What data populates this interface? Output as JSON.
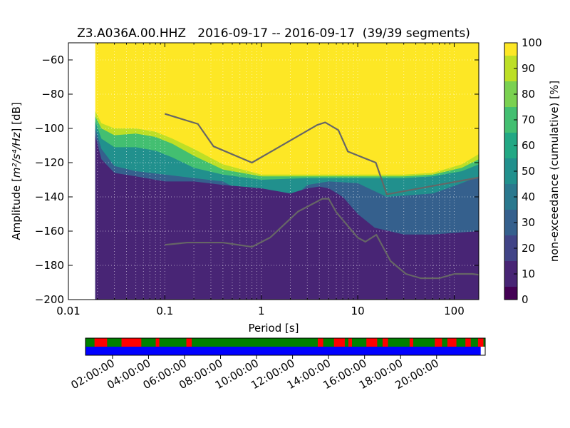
{
  "title": "Z3.A036A.00.HHZ   2016-09-17 -- 2016-09-17  (39/39 segments)",
  "chart_data": {
    "type": "heatmap",
    "title": "Z3.A036A.00.HHZ   2016-09-17 -- 2016-09-17  (39/39 segments)",
    "xlabel": "Period [s]",
    "ylabel_prefix": "Amplitude [",
    "ylabel_units": "m²/s⁴/Hz",
    "ylabel_suffix": "] [dB]",
    "x_scale": "log",
    "xlim": [
      0.01,
      180
    ],
    "ylim": [
      -200,
      -50
    ],
    "grid": true,
    "x_ticks": [
      {
        "value": 0.01,
        "label": "0.01"
      },
      {
        "value": 0.1,
        "label": "0.1"
      },
      {
        "value": 1,
        "label": "1"
      },
      {
        "value": 10,
        "label": "10"
      },
      {
        "value": 100,
        "label": "100"
      }
    ],
    "y_ticks": [
      {
        "value": -60,
        "label": "−60"
      },
      {
        "value": -80,
        "label": "−80"
      },
      {
        "value": -100,
        "label": "−100"
      },
      {
        "value": -120,
        "label": "−120"
      },
      {
        "value": -140,
        "label": "−140"
      },
      {
        "value": -160,
        "label": "−160"
      },
      {
        "value": -180,
        "label": "−180"
      },
      {
        "value": -200,
        "label": "−200"
      }
    ],
    "data_start_period": 0.019,
    "colorbar": {
      "label": "non-exceedance (cumulative) [%]",
      "range": [
        0,
        100
      ],
      "ticks": [
        {
          "value": 0,
          "label": "0"
        },
        {
          "value": 10,
          "label": "10"
        },
        {
          "value": 20,
          "label": "20"
        },
        {
          "value": 30,
          "label": "30"
        },
        {
          "value": 40,
          "label": "40"
        },
        {
          "value": 50,
          "label": "50"
        },
        {
          "value": 60,
          "label": "60"
        },
        {
          "value": 70,
          "label": "70"
        },
        {
          "value": 80,
          "label": "80"
        },
        {
          "value": 90,
          "label": "90"
        },
        {
          "value": 100,
          "label": "100"
        }
      ],
      "colors": [
        "#440154",
        "#482575",
        "#414487",
        "#35608d",
        "#2a788e",
        "#21908d",
        "#22a884",
        "#43bf71",
        "#7ad151",
        "#bddf26",
        "#fde725"
      ]
    },
    "level_curves": [
      {
        "percent": 8,
        "points": [
          [
            0.019,
            -104
          ],
          [
            0.022,
            -118
          ],
          [
            0.03,
            -126
          ],
          [
            0.05,
            -128
          ],
          [
            0.1,
            -131
          ],
          [
            0.2,
            -131
          ],
          [
            0.4,
            -133
          ],
          [
            1,
            -135
          ],
          [
            2,
            -138
          ],
          [
            3,
            -135
          ],
          [
            4,
            -134
          ],
          [
            5,
            -135
          ],
          [
            7,
            -140
          ],
          [
            10,
            -150
          ],
          [
            15,
            -158
          ],
          [
            30,
            -162
          ],
          [
            60,
            -162
          ],
          [
            180,
            -160
          ]
        ]
      },
      {
        "percent": 25,
        "points": [
          [
            0.019,
            -100
          ],
          [
            0.022,
            -112
          ],
          [
            0.03,
            -122
          ],
          [
            0.05,
            -125
          ],
          [
            0.1,
            -127
          ],
          [
            0.2,
            -129
          ],
          [
            0.4,
            -131
          ],
          [
            1,
            -143
          ],
          [
            2,
            -142
          ],
          [
            3,
            -133
          ],
          [
            5,
            -131
          ],
          [
            10,
            -132
          ],
          [
            20,
            -140
          ],
          [
            60,
            -138
          ],
          [
            120,
            -132
          ],
          [
            180,
            -128
          ]
        ]
      },
      {
        "percent": 45,
        "points": [
          [
            0.019,
            -96
          ],
          [
            0.022,
            -106
          ],
          [
            0.03,
            -111
          ],
          [
            0.05,
            -111
          ],
          [
            0.08,
            -113
          ],
          [
            0.12,
            -117
          ],
          [
            0.2,
            -123
          ],
          [
            0.4,
            -127
          ],
          [
            1,
            -130
          ],
          [
            3,
            -129
          ],
          [
            10,
            -129
          ],
          [
            30,
            -129
          ],
          [
            60,
            -128
          ],
          [
            120,
            -125
          ],
          [
            180,
            -121
          ]
        ]
      },
      {
        "percent": 65,
        "points": [
          [
            0.019,
            -93
          ],
          [
            0.022,
            -100
          ],
          [
            0.03,
            -104
          ],
          [
            0.05,
            -103
          ],
          [
            0.08,
            -105
          ],
          [
            0.12,
            -109
          ],
          [
            0.2,
            -116
          ],
          [
            0.4,
            -124
          ],
          [
            1,
            -128
          ],
          [
            3,
            -128
          ],
          [
            10,
            -128
          ],
          [
            30,
            -128
          ],
          [
            60,
            -127
          ],
          [
            120,
            -123
          ],
          [
            180,
            -118
          ]
        ]
      },
      {
        "percent": 85,
        "points": [
          [
            0.019,
            -90
          ],
          [
            0.022,
            -97
          ],
          [
            0.03,
            -100
          ],
          [
            0.05,
            -100
          ],
          [
            0.08,
            -102
          ],
          [
            0.12,
            -106
          ],
          [
            0.2,
            -112
          ],
          [
            0.4,
            -121
          ],
          [
            1,
            -127
          ],
          [
            3,
            -127
          ],
          [
            10,
            -127
          ],
          [
            30,
            -127
          ],
          [
            60,
            -126
          ],
          [
            120,
            -121
          ],
          [
            180,
            -115
          ]
        ]
      }
    ],
    "noise_models": [
      {
        "name": "NHNM",
        "color": "#666666",
        "points": [
          [
            0.1,
            -91.5
          ],
          [
            0.22,
            -97.4
          ],
          [
            0.32,
            -110.5
          ],
          [
            0.8,
            -120
          ],
          [
            3.8,
            -98
          ],
          [
            4.6,
            -96.5
          ],
          [
            6.3,
            -101
          ],
          [
            7.9,
            -113.5
          ],
          [
            15.4,
            -120
          ],
          [
            20,
            -138.5
          ],
          [
            180,
            -128.7
          ]
        ]
      },
      {
        "name": "NLNM",
        "color": "#666666",
        "points": [
          [
            0.1,
            -168
          ],
          [
            0.17,
            -166.7
          ],
          [
            0.4,
            -166.7
          ],
          [
            0.8,
            -169.2
          ],
          [
            1.24,
            -163.7
          ],
          [
            2.4,
            -148.6
          ],
          [
            4.3,
            -141.1
          ],
          [
            5,
            -141.1
          ],
          [
            6,
            -149
          ],
          [
            10,
            -163.8
          ],
          [
            12,
            -166.2
          ],
          [
            15.6,
            -162.1
          ],
          [
            21.9,
            -177.5
          ],
          [
            31.6,
            -185
          ],
          [
            45,
            -187.5
          ],
          [
            70,
            -187.5
          ],
          [
            101,
            -185
          ],
          [
            154,
            -185
          ],
          [
            180,
            -185.5
          ]
        ]
      }
    ],
    "timeline": {
      "time_range_hours": [
        0.5,
        22.7
      ],
      "tick_hours": [
        2,
        4,
        6,
        8,
        10,
        12,
        14,
        16,
        18,
        20
      ],
      "tick_labels": [
        "02:00:00",
        "04:00:00",
        "06:00:00",
        "08:00:00",
        "10:00:00",
        "12:00:00",
        "14:00:00",
        "16:00:00",
        "18:00:00",
        "20:00:00"
      ],
      "upper_bar_colors": {
        "used": "#008000",
        "rejected": "#ff0000"
      },
      "lower_bar_color": "#0000ff",
      "rejected_intervals_hours": [
        [
          1.0,
          1.7
        ],
        [
          2.5,
          3.6
        ],
        [
          4.4,
          4.6
        ],
        [
          6.1,
          6.4
        ],
        [
          13.4,
          13.7
        ],
        [
          14.3,
          14.9
        ],
        [
          15.1,
          15.3
        ],
        [
          16.1,
          16.7
        ],
        [
          17.0,
          17.3
        ],
        [
          18.5,
          18.7
        ],
        [
          19.9,
          20.3
        ],
        [
          20.6,
          21.1
        ],
        [
          21.6,
          21.9
        ],
        [
          22.3,
          22.6
        ]
      ],
      "lower_bar_end_hours": 22.45
    }
  }
}
